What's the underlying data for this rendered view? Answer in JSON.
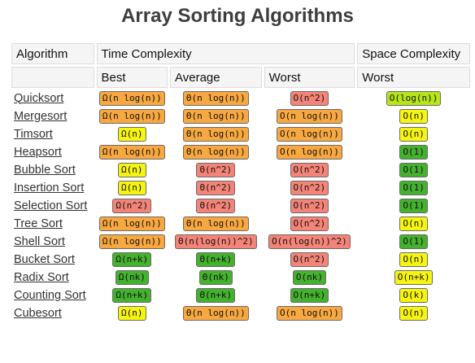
{
  "title": "Array Sorting Algorithms",
  "header": {
    "row1": {
      "algorithm": "Algorithm",
      "time_complexity": "Time Complexity",
      "space_complexity": "Space Complexity"
    },
    "row2": {
      "best": "Best",
      "average": "Average",
      "worst": "Worst",
      "space_worst": "Worst"
    }
  },
  "colors": {
    "orange": "#f7a840",
    "yellow": "#f6f411",
    "red": "#f48478",
    "green": "#44b22e",
    "lime": "#b5e51a"
  },
  "rows": [
    {
      "name": "Quicksort",
      "best": {
        "text": "Ω(n log(n))",
        "color": "orange"
      },
      "average": {
        "text": "Θ(n log(n))",
        "color": "orange"
      },
      "worst": {
        "text": "O(n^2)",
        "color": "red"
      },
      "space": {
        "text": "O(log(n))",
        "color": "lime"
      }
    },
    {
      "name": "Mergesort",
      "best": {
        "text": "Ω(n log(n))",
        "color": "orange"
      },
      "average": {
        "text": "Θ(n log(n))",
        "color": "orange"
      },
      "worst": {
        "text": "O(n log(n))",
        "color": "orange"
      },
      "space": {
        "text": "O(n)",
        "color": "yellow"
      }
    },
    {
      "name": "Timsort",
      "best": {
        "text": "Ω(n)",
        "color": "yellow"
      },
      "average": {
        "text": "Θ(n log(n))",
        "color": "orange"
      },
      "worst": {
        "text": "O(n log(n))",
        "color": "orange"
      },
      "space": {
        "text": "O(n)",
        "color": "yellow"
      }
    },
    {
      "name": "Heapsort",
      "best": {
        "text": "Ω(n log(n))",
        "color": "orange"
      },
      "average": {
        "text": "Θ(n log(n))",
        "color": "orange"
      },
      "worst": {
        "text": "O(n log(n))",
        "color": "orange"
      },
      "space": {
        "text": "O(1)",
        "color": "green"
      }
    },
    {
      "name": "Bubble Sort",
      "best": {
        "text": "Ω(n)",
        "color": "yellow"
      },
      "average": {
        "text": "Θ(n^2)",
        "color": "red"
      },
      "worst": {
        "text": "O(n^2)",
        "color": "red"
      },
      "space": {
        "text": "O(1)",
        "color": "green"
      }
    },
    {
      "name": "Insertion Sort",
      "best": {
        "text": "Ω(n)",
        "color": "yellow"
      },
      "average": {
        "text": "Θ(n^2)",
        "color": "red"
      },
      "worst": {
        "text": "O(n^2)",
        "color": "red"
      },
      "space": {
        "text": "O(1)",
        "color": "green"
      }
    },
    {
      "name": "Selection Sort",
      "best": {
        "text": "Ω(n^2)",
        "color": "red"
      },
      "average": {
        "text": "Θ(n^2)",
        "color": "red"
      },
      "worst": {
        "text": "O(n^2)",
        "color": "red"
      },
      "space": {
        "text": "O(1)",
        "color": "green"
      }
    },
    {
      "name": "Tree Sort",
      "best": {
        "text": "Ω(n log(n))",
        "color": "orange"
      },
      "average": {
        "text": "Θ(n log(n))",
        "color": "orange"
      },
      "worst": {
        "text": "O(n^2)",
        "color": "red"
      },
      "space": {
        "text": "O(n)",
        "color": "yellow"
      }
    },
    {
      "name": "Shell Sort",
      "best": {
        "text": "Ω(n log(n))",
        "color": "orange"
      },
      "average": {
        "text": "Θ(n(log(n))^2)",
        "color": "red"
      },
      "worst": {
        "text": "O(n(log(n))^2)",
        "color": "red"
      },
      "space": {
        "text": "O(1)",
        "color": "green"
      }
    },
    {
      "name": "Bucket Sort",
      "best": {
        "text": "Ω(n+k)",
        "color": "green"
      },
      "average": {
        "text": "Θ(n+k)",
        "color": "green"
      },
      "worst": {
        "text": "O(n^2)",
        "color": "red"
      },
      "space": {
        "text": "O(n)",
        "color": "yellow"
      }
    },
    {
      "name": "Radix Sort",
      "best": {
        "text": "Ω(nk)",
        "color": "green"
      },
      "average": {
        "text": "Θ(nk)",
        "color": "green"
      },
      "worst": {
        "text": "O(nk)",
        "color": "green"
      },
      "space": {
        "text": "O(n+k)",
        "color": "yellow"
      }
    },
    {
      "name": "Counting Sort",
      "best": {
        "text": "Ω(n+k)",
        "color": "green"
      },
      "average": {
        "text": "Θ(n+k)",
        "color": "green"
      },
      "worst": {
        "text": "O(n+k)",
        "color": "green"
      },
      "space": {
        "text": "O(k)",
        "color": "yellow"
      }
    },
    {
      "name": "Cubesort",
      "best": {
        "text": "Ω(n)",
        "color": "yellow"
      },
      "average": {
        "text": "Θ(n log(n))",
        "color": "orange"
      },
      "worst": {
        "text": "O(n log(n))",
        "color": "orange"
      },
      "space": {
        "text": "O(n)",
        "color": "yellow"
      }
    }
  ]
}
